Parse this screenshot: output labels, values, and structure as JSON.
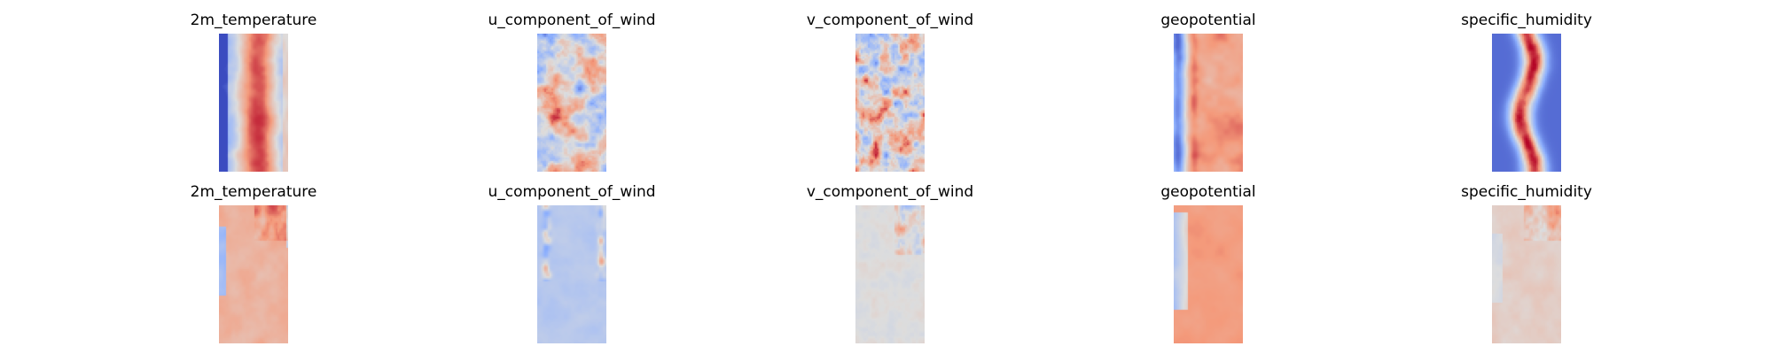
{
  "figure": {
    "rows": [
      {
        "panels": [
          {
            "title": "2m_temperature"
          },
          {
            "title": "u_component_of_wind"
          },
          {
            "title": "v_component_of_wind"
          },
          {
            "title": "geopotential"
          },
          {
            "title": "specific_humidity"
          }
        ]
      },
      {
        "panels": [
          {
            "title": "2m_temperature"
          },
          {
            "title": "u_component_of_wind"
          },
          {
            "title": "v_component_of_wind"
          },
          {
            "title": "geopotential"
          },
          {
            "title": "specific_humidity"
          }
        ]
      }
    ]
  },
  "chart_data": {
    "type": "heatmap",
    "colormap": "coolwarm",
    "axes": "off",
    "colors": {
      "low": "#3b4cc0",
      "mid": "#dddddd",
      "high": "#b40426"
    },
    "panels": [
      {
        "row": 0,
        "col": 0,
        "title": "2m_temperature",
        "pattern": "temp_field"
      },
      {
        "row": 0,
        "col": 1,
        "title": "u_component_of_wind",
        "pattern": "u_wind_field"
      },
      {
        "row": 0,
        "col": 2,
        "title": "v_component_of_wind",
        "pattern": "v_wind_field"
      },
      {
        "row": 0,
        "col": 3,
        "title": "geopotential",
        "pattern": "geopotential_field"
      },
      {
        "row": 0,
        "col": 4,
        "title": "specific_humidity",
        "pattern": "humidity_field"
      },
      {
        "row": 1,
        "col": 0,
        "title": "2m_temperature",
        "pattern": "temp_diff"
      },
      {
        "row": 1,
        "col": 1,
        "title": "u_component_of_wind",
        "pattern": "u_wind_diff"
      },
      {
        "row": 1,
        "col": 2,
        "title": "v_component_of_wind",
        "pattern": "v_wind_diff"
      },
      {
        "row": 1,
        "col": 3,
        "title": "geopotential",
        "pattern": "geopotential_diff"
      },
      {
        "row": 1,
        "col": 4,
        "title": "specific_humidity",
        "pattern": "humidity_diff"
      }
    ]
  }
}
